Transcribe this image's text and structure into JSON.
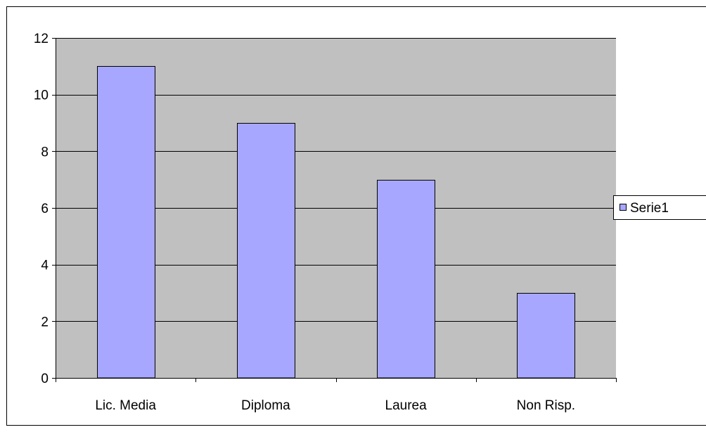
{
  "chart_data": {
    "type": "bar",
    "categories": [
      "Lic. Media",
      "Diploma",
      "Laurea",
      "Non Risp."
    ],
    "series": [
      {
        "name": "Serie1",
        "values": [
          11,
          9,
          7,
          3
        ]
      }
    ],
    "title": "",
    "xlabel": "",
    "ylabel": "",
    "ylim": [
      0,
      12
    ],
    "yticks": [
      0,
      2,
      4,
      6,
      8,
      10,
      12
    ],
    "grid": true,
    "legend_position": "right",
    "colors": {
      "bar_fill": "#a7a7ff",
      "bar_stroke": "#000000",
      "plot_background": "#c0c0c0",
      "gridline": "#000000",
      "chart_border": "#000000"
    }
  }
}
